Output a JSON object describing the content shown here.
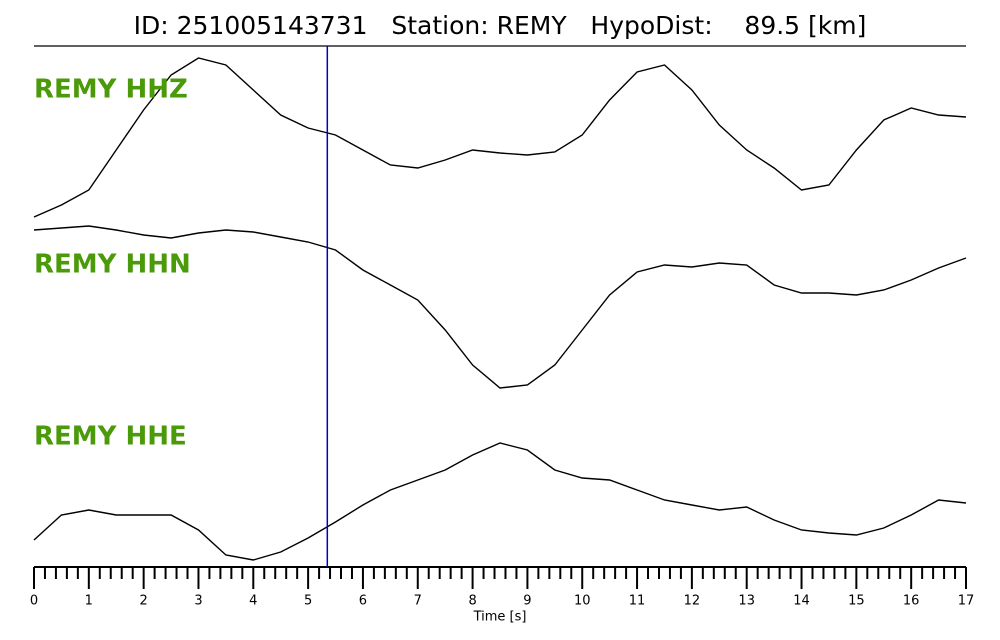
{
  "chart_data": {
    "type": "line",
    "title": "ID: 251005143731   Station: REMY   HypoDist:    89.5 [km]",
    "x_label": "Time [s]",
    "x": [
      0,
      0.5,
      1,
      1.5,
      2,
      2.5,
      3,
      3.5,
      4,
      4.5,
      5,
      5.5,
      6,
      6.5,
      7,
      7.5,
      8,
      8.5,
      9,
      9.5,
      10,
      10.5,
      11,
      11.5,
      12,
      12.5,
      13,
      13.5,
      14,
      14.5,
      15,
      15.5,
      16,
      16.5,
      17
    ],
    "xlim": [
      0,
      17
    ],
    "xticks": [
      0,
      1,
      2,
      3,
      4,
      5,
      6,
      7,
      8,
      9,
      10,
      11,
      12,
      13,
      14,
      15,
      16,
      17
    ],
    "minor_ticks_per_major": 5,
    "ylim": [
      0,
      165
    ],
    "pick_time": 5.35,
    "pick_color": "#0000cc",
    "label_color": "#4a9a0a",
    "series": [
      {
        "name": "REMY HHZ",
        "color": "#000000",
        "values": [
          3,
          15,
          30,
          70,
          110,
          145,
          162,
          155,
          130,
          105,
          92,
          85,
          70,
          55,
          52,
          60,
          70,
          67,
          65,
          68,
          85,
          120,
          148,
          155,
          130,
          95,
          70,
          52,
          30,
          35,
          70,
          100,
          112,
          105,
          103
        ]
      },
      {
        "name": "REMY HHN",
        "color": "#000000",
        "values": [
          165,
          167,
          169,
          165,
          160,
          157,
          162,
          165,
          163,
          158,
          153,
          145,
          125,
          110,
          95,
          65,
          30,
          7,
          10,
          30,
          65,
          100,
          123,
          130,
          128,
          132,
          130,
          110,
          102,
          102,
          100,
          105,
          115,
          127,
          137
        ]
      },
      {
        "name": "REMY HHE",
        "color": "#000000",
        "values": [
          25,
          50,
          55,
          50,
          50,
          50,
          35,
          10,
          5,
          13,
          27,
          43,
          60,
          75,
          85,
          95,
          110,
          122,
          115,
          95,
          87,
          85,
          75,
          65,
          60,
          55,
          58,
          45,
          35,
          32,
          30,
          37,
          50,
          65,
          62
        ]
      }
    ]
  }
}
